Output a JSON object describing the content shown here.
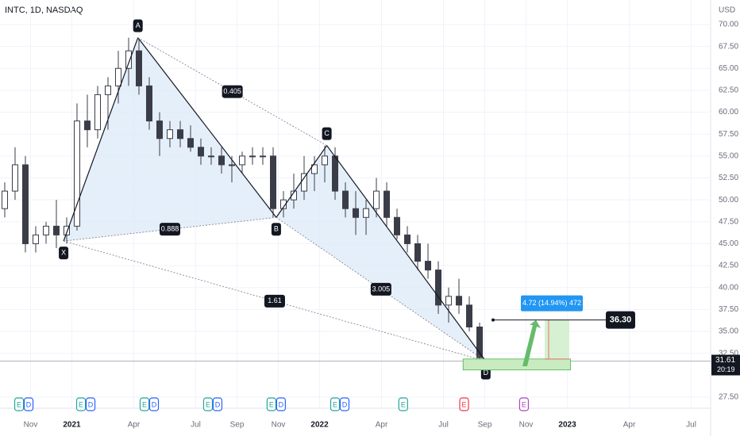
{
  "chart_data": {
    "type": "candlestick",
    "title": "INTC, 1D, NASDAQ",
    "currency": "USD",
    "x": [
      0,
      1,
      2,
      3,
      4,
      5,
      6,
      7,
      8,
      9,
      10,
      11,
      12,
      13,
      14,
      15,
      16,
      17,
      18,
      19,
      20,
      21,
      22,
      23,
      24,
      25,
      26,
      27,
      28,
      29,
      30,
      31,
      32,
      33,
      34,
      35,
      36,
      37,
      38,
      39,
      40,
      41,
      42,
      43,
      44,
      45,
      46
    ],
    "open": [
      49,
      51,
      54,
      45,
      46,
      47,
      46,
      47,
      59,
      58,
      62,
      63,
      65,
      67,
      63,
      59,
      57,
      58,
      57,
      56,
      55,
      55,
      54,
      54,
      55,
      55,
      55,
      49,
      50,
      51,
      53,
      54,
      55,
      51,
      49,
      48,
      49,
      51,
      48,
      46,
      45,
      43,
      42,
      38,
      39,
      38,
      35.5
    ],
    "high": [
      52,
      56,
      55,
      47,
      47.5,
      50,
      48,
      61,
      62,
      63,
      64,
      67,
      68.5,
      68.4,
      64,
      60,
      59,
      59,
      58.5,
      57,
      56,
      56,
      55,
      55.5,
      56,
      56,
      56,
      51,
      53,
      55,
      55,
      56.2,
      56,
      52,
      51,
      50,
      52.5,
      52,
      49,
      47,
      46,
      45,
      43,
      40,
      41,
      39,
      36
    ],
    "low": [
      48,
      50,
      44,
      44,
      45,
      44.5,
      45,
      46.5,
      56,
      57,
      58,
      61,
      63,
      62,
      58,
      55,
      56,
      56,
      55.5,
      54,
      54,
      53,
      52,
      53,
      54,
      54,
      48,
      48,
      49,
      50,
      51,
      52,
      50,
      48,
      46,
      46,
      48,
      47,
      45.5,
      44,
      42,
      41,
      37,
      36,
      37,
      35,
      31.6
    ],
    "close": [
      51,
      54,
      45,
      46,
      47,
      46,
      47,
      59,
      58,
      62,
      63,
      65,
      67,
      63,
      59,
      57,
      58,
      57,
      56,
      55,
      55,
      54,
      54,
      55,
      55,
      55,
      49,
      50,
      51,
      53,
      54,
      55,
      51,
      49,
      48,
      49,
      51,
      48,
      46,
      45,
      43,
      42,
      38,
      39,
      38,
      35.5,
      32
    ],
    "color": "#3a3d47",
    "xlim": [
      -0.46,
      68.38
    ],
    "ylim": [
      26.23,
      72.8
    ],
    "xticks": [
      {
        "value": 2.5,
        "label": "Nov"
      },
      {
        "value": 6.5,
        "label": "2021"
      },
      {
        "value": 12.5,
        "label": "Apr"
      },
      {
        "value": 18.5,
        "label": "Jul"
      },
      {
        "value": 22.5,
        "label": "Sep"
      },
      {
        "value": 26.5,
        "label": "Nov"
      },
      {
        "value": 30.5,
        "label": "2022"
      },
      {
        "value": 36.5,
        "label": "Apr"
      },
      {
        "value": 42.5,
        "label": "Jul"
      },
      {
        "value": 46.5,
        "label": "Sep"
      },
      {
        "value": 50.5,
        "label": "Nov"
      },
      {
        "value": 54.5,
        "label": "2023"
      },
      {
        "value": 60.5,
        "label": "Apr"
      },
      {
        "value": 66.5,
        "label": "Jul"
      }
    ],
    "yticks": [
      {
        "value": 27.5,
        "label": "27.50"
      },
      {
        "value": 32.5,
        "label": "32.50"
      },
      {
        "value": 35,
        "label": "35.00"
      },
      {
        "value": 37.5,
        "label": "37.50"
      },
      {
        "value": 40,
        "label": "40.00"
      },
      {
        "value": 42.5,
        "label": "42.50"
      },
      {
        "value": 45,
        "label": "45.00"
      },
      {
        "value": 47.5,
        "label": "47.50"
      },
      {
        "value": 50,
        "label": "50.00"
      },
      {
        "value": 52.5,
        "label": "52.50"
      },
      {
        "value": 55,
        "label": "55.00"
      },
      {
        "value": 57.5,
        "label": "57.50"
      },
      {
        "value": 60,
        "label": "60.00"
      },
      {
        "value": 62.5,
        "label": "62.50"
      },
      {
        "value": 65,
        "label": "65.00"
      },
      {
        "value": 67.5,
        "label": "67.50"
      },
      {
        "value": 70,
        "label": "70.00"
      }
    ],
    "pattern": {
      "points": [
        {
          "label": "X",
          "x": 5.7,
          "y": 45.3
        },
        {
          "label": "A",
          "x": 12.9,
          "y": 68.5
        },
        {
          "label": "B",
          "x": 26.3,
          "y": 48
        },
        {
          "label": "C",
          "x": 31.2,
          "y": 56.2
        },
        {
          "label": "D",
          "x": 46.6,
          "y": 31.6
        }
      ],
      "ratios": [
        0.405,
        0.888,
        1.61,
        3.005
      ],
      "fill": "#dce9f8"
    },
    "last_price": {
      "value": 31.61,
      "countdown": "20:19"
    },
    "target": {
      "value": 36.3,
      "label": "36.30"
    },
    "measure": {
      "label": "4.72 (14.94%) 472",
      "color": "#2196f3"
    },
    "target_zone": {
      "low": 30.6,
      "high": 31.85,
      "x": [
        44.4,
        54.8
      ],
      "color": "#c8ecc0"
    },
    "events": [
      {
        "x": 1.85,
        "labels": [
          "E",
          "D"
        ]
      },
      {
        "x": 7.85,
        "labels": [
          "E",
          "D"
        ]
      },
      {
        "x": 14,
        "labels": [
          "E",
          "D"
        ]
      },
      {
        "x": 20.15,
        "labels": [
          "E",
          "D"
        ]
      },
      {
        "x": 26.3,
        "labels": [
          "E",
          "D"
        ]
      },
      {
        "x": 32.46,
        "labels": [
          "E",
          "D"
        ]
      },
      {
        "x": 38.6,
        "labels": [
          "E"
        ]
      },
      {
        "x": 44.5,
        "labels": [
          "E"
        ]
      },
      {
        "x": 50.3,
        "labels": [
          "E"
        ]
      }
    ]
  }
}
